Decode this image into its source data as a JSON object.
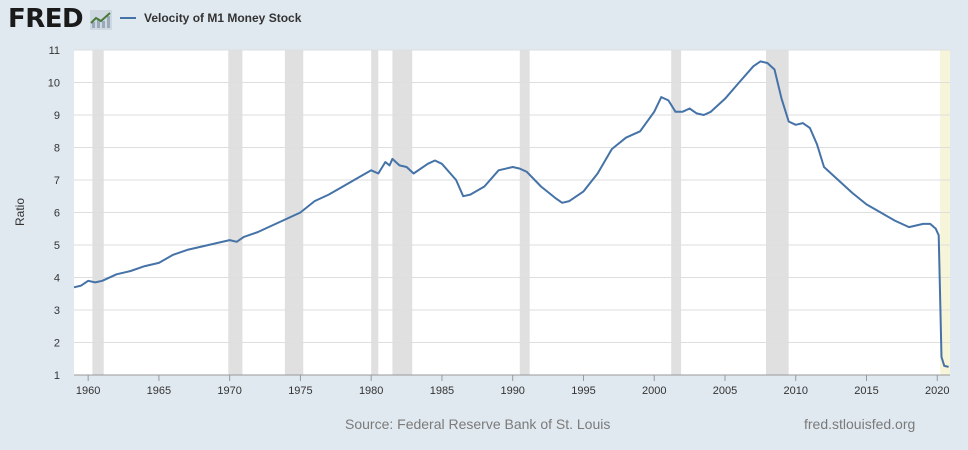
{
  "header": {
    "logo_text": "FRED",
    "logo_badge_icon": "trend-chart-icon"
  },
  "footer": {
    "source": "Source: Federal Reserve Bank of St. Louis",
    "url": "fred.stlouisfed.org"
  },
  "colors": {
    "series": "#4572a7",
    "recession": "#e0e0e0",
    "recent_highlight": "#f6f5da",
    "background": "#e1e9f0",
    "plot": "#ffffff"
  },
  "chart_data": {
    "type": "line",
    "title": "",
    "xlabel": "",
    "ylabel": "Ratio",
    "xlim": [
      1959,
      2020.9
    ],
    "ylim": [
      1,
      11
    ],
    "yticks": [
      1,
      2,
      3,
      4,
      5,
      6,
      7,
      8,
      9,
      10,
      11
    ],
    "xticks": [
      1960,
      1965,
      1970,
      1975,
      1980,
      1985,
      1990,
      1995,
      2000,
      2005,
      2010,
      2015,
      2020
    ],
    "grid": true,
    "legend": "top-left",
    "recessions": [
      [
        1960.3,
        1961.1
      ],
      [
        1969.9,
        1970.9
      ],
      [
        1973.9,
        1975.2
      ],
      [
        1980.0,
        1980.5
      ],
      [
        1981.5,
        1982.9
      ],
      [
        1990.5,
        1991.2
      ],
      [
        2001.2,
        2001.9
      ],
      [
        2007.9,
        2009.5
      ]
    ],
    "highlight_period": [
      2020.2,
      2020.9
    ],
    "series": [
      {
        "name": "Velocity of M1 Money Stock",
        "x": [
          1959.0,
          1959.5,
          1960.0,
          1960.5,
          1961.0,
          1962.0,
          1963.0,
          1964.0,
          1965.0,
          1966.0,
          1967.0,
          1968.0,
          1969.0,
          1970.0,
          1970.5,
          1971.0,
          1972.0,
          1973.0,
          1974.0,
          1975.0,
          1976.0,
          1977.0,
          1978.0,
          1979.0,
          1980.0,
          1980.5,
          1981.0,
          1981.3,
          1981.5,
          1982.0,
          1982.5,
          1983.0,
          1984.0,
          1984.5,
          1985.0,
          1986.0,
          1986.5,
          1987.0,
          1988.0,
          1989.0,
          1990.0,
          1990.5,
          1991.0,
          1992.0,
          1993.0,
          1993.5,
          1994.0,
          1995.0,
          1996.0,
          1997.0,
          1998.0,
          1999.0,
          2000.0,
          2000.5,
          2001.0,
          2001.5,
          2002.0,
          2002.5,
          2003.0,
          2003.5,
          2004.0,
          2005.0,
          2006.0,
          2007.0,
          2007.5,
          2008.0,
          2008.5,
          2009.0,
          2009.5,
          2010.0,
          2010.5,
          2011.0,
          2011.5,
          2012.0,
          2013.0,
          2014.0,
          2015.0,
          2016.0,
          2017.0,
          2018.0,
          2019.0,
          2019.5,
          2019.9,
          2020.1,
          2020.3,
          2020.5,
          2020.8
        ],
        "values": [
          3.7,
          3.75,
          3.9,
          3.85,
          3.9,
          4.1,
          4.2,
          4.35,
          4.45,
          4.7,
          4.85,
          4.95,
          5.05,
          5.15,
          5.1,
          5.25,
          5.4,
          5.6,
          5.8,
          6.0,
          6.35,
          6.55,
          6.8,
          7.05,
          7.3,
          7.2,
          7.55,
          7.45,
          7.65,
          7.45,
          7.4,
          7.2,
          7.5,
          7.6,
          7.5,
          7.0,
          6.5,
          6.55,
          6.8,
          7.3,
          7.4,
          7.35,
          7.25,
          6.8,
          6.45,
          6.3,
          6.35,
          6.65,
          7.2,
          7.95,
          8.3,
          8.5,
          9.1,
          9.55,
          9.45,
          9.1,
          9.1,
          9.2,
          9.05,
          9.0,
          9.1,
          9.5,
          10.0,
          10.5,
          10.65,
          10.6,
          10.4,
          9.5,
          8.8,
          8.7,
          8.75,
          8.6,
          8.1,
          7.4,
          7.0,
          6.6,
          6.25,
          6.0,
          5.75,
          5.55,
          5.65,
          5.65,
          5.5,
          5.3,
          1.55,
          1.28,
          1.25
        ]
      }
    ]
  }
}
